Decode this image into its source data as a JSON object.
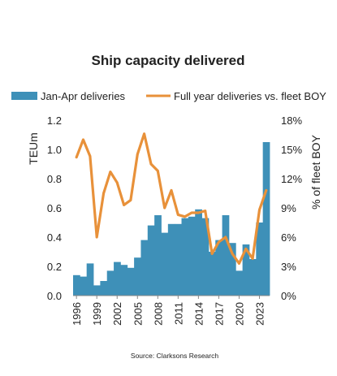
{
  "chart_data": {
    "type": "bar+line",
    "title": "Ship capacity delivered",
    "source": "Source: Clarksons Research",
    "ylabel_left": "TEUm",
    "ylabel_right": "% of fleet BOY",
    "ylim_left": [
      0,
      1.2
    ],
    "ylim_right": [
      0,
      18
    ],
    "yticks_left": [
      "0.0",
      "0.2",
      "0.4",
      "0.6",
      "0.8",
      "1.0",
      "1.2"
    ],
    "yticks_right": [
      "0%",
      "3%",
      "6%",
      "9%",
      "12%",
      "15%",
      "18%"
    ],
    "xticks": [
      "1996",
      "1999",
      "2002",
      "2005",
      "2008",
      "2011",
      "2014",
      "2017",
      "2020",
      "2023"
    ],
    "legend": [
      "Jan-Apr deliveries",
      "Full year deliveries vs. fleet BOY"
    ],
    "legend_position": "top",
    "grid": false,
    "colors": {
      "bars": "#3e90b8",
      "line": "#e8913a"
    },
    "x": [
      1996,
      1997,
      1998,
      1999,
      2000,
      2001,
      2002,
      2003,
      2004,
      2005,
      2006,
      2007,
      2008,
      2009,
      2010,
      2011,
      2012,
      2013,
      2014,
      2015,
      2016,
      2017,
      2018,
      2019,
      2020,
      2021,
      2022,
      2023,
      2024
    ],
    "series": [
      {
        "name": "Jan-Apr deliveries",
        "type": "bar",
        "axis": "left",
        "values": [
          0.14,
          0.13,
          0.22,
          0.07,
          0.1,
          0.17,
          0.23,
          0.21,
          0.19,
          0.26,
          0.38,
          0.48,
          0.55,
          0.43,
          0.49,
          0.49,
          0.53,
          0.54,
          0.59,
          0.53,
          0.3,
          0.38,
          0.55,
          0.36,
          0.17,
          0.35,
          0.25,
          0.5,
          1.05
        ]
      },
      {
        "name": "Full year deliveries vs. fleet BOY",
        "type": "line",
        "axis": "right",
        "values": [
          14.2,
          16.0,
          14.3,
          6.0,
          10.5,
          12.7,
          11.6,
          9.3,
          9.8,
          14.5,
          16.6,
          13.5,
          12.8,
          9.0,
          10.8,
          8.3,
          8.1,
          8.5,
          8.5,
          8.7,
          4.3,
          5.5,
          6.0,
          4.3,
          3.3,
          4.8,
          3.8,
          8.8,
          10.8
        ]
      }
    ]
  }
}
